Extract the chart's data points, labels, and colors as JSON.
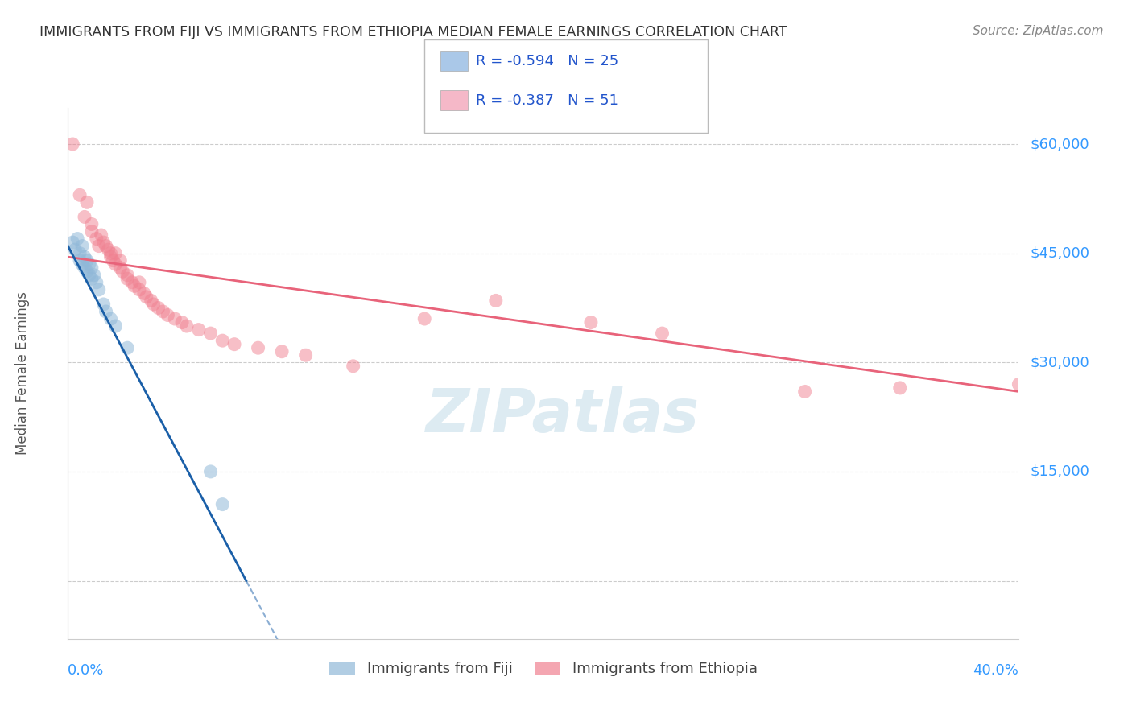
{
  "title": "IMMIGRANTS FROM FIJI VS IMMIGRANTS FROM ETHIOPIA MEDIAN FEMALE EARNINGS CORRELATION CHART",
  "source": "Source: ZipAtlas.com",
  "ylabel": "Median Female Earnings",
  "yticks": [
    0,
    15000,
    30000,
    45000,
    60000
  ],
  "ytick_labels": [
    "",
    "$15,000",
    "$30,000",
    "$45,000",
    "$60,000"
  ],
  "xmin": 0.0,
  "xmax": 0.4,
  "ymin": -8000,
  "ymax": 65000,
  "legend": [
    {
      "label": "R = -0.594   N = 25",
      "color": "#aac8e8"
    },
    {
      "label": "R = -0.387   N = 51",
      "color": "#f5b8c8"
    }
  ],
  "fiji_scatter": [
    [
      0.002,
      46500
    ],
    [
      0.003,
      45500
    ],
    [
      0.004,
      47000
    ],
    [
      0.005,
      45000
    ],
    [
      0.005,
      44000
    ],
    [
      0.006,
      46000
    ],
    [
      0.006,
      43500
    ],
    [
      0.007,
      44500
    ],
    [
      0.007,
      43000
    ],
    [
      0.008,
      44000
    ],
    [
      0.008,
      42500
    ],
    [
      0.009,
      43500
    ],
    [
      0.009,
      42000
    ],
    [
      0.01,
      43000
    ],
    [
      0.01,
      41500
    ],
    [
      0.011,
      42000
    ],
    [
      0.012,
      41000
    ],
    [
      0.013,
      40000
    ],
    [
      0.015,
      38000
    ],
    [
      0.016,
      37000
    ],
    [
      0.018,
      36000
    ],
    [
      0.02,
      35000
    ],
    [
      0.025,
      32000
    ],
    [
      0.06,
      15000
    ],
    [
      0.065,
      10500
    ]
  ],
  "ethiopia_scatter": [
    [
      0.002,
      60000
    ],
    [
      0.005,
      53000
    ],
    [
      0.007,
      50000
    ],
    [
      0.008,
      52000
    ],
    [
      0.01,
      49000
    ],
    [
      0.01,
      48000
    ],
    [
      0.012,
      47000
    ],
    [
      0.013,
      46000
    ],
    [
      0.014,
      47500
    ],
    [
      0.015,
      46500
    ],
    [
      0.016,
      46000
    ],
    [
      0.017,
      45500
    ],
    [
      0.018,
      45000
    ],
    [
      0.018,
      44500
    ],
    [
      0.019,
      44000
    ],
    [
      0.02,
      45000
    ],
    [
      0.02,
      43500
    ],
    [
      0.022,
      43000
    ],
    [
      0.022,
      44000
    ],
    [
      0.023,
      42500
    ],
    [
      0.025,
      42000
    ],
    [
      0.025,
      41500
    ],
    [
      0.027,
      41000
    ],
    [
      0.028,
      40500
    ],
    [
      0.03,
      40000
    ],
    [
      0.03,
      41000
    ],
    [
      0.032,
      39500
    ],
    [
      0.033,
      39000
    ],
    [
      0.035,
      38500
    ],
    [
      0.036,
      38000
    ],
    [
      0.038,
      37500
    ],
    [
      0.04,
      37000
    ],
    [
      0.042,
      36500
    ],
    [
      0.045,
      36000
    ],
    [
      0.048,
      35500
    ],
    [
      0.05,
      35000
    ],
    [
      0.055,
      34500
    ],
    [
      0.06,
      34000
    ],
    [
      0.065,
      33000
    ],
    [
      0.07,
      32500
    ],
    [
      0.08,
      32000
    ],
    [
      0.09,
      31500
    ],
    [
      0.1,
      31000
    ],
    [
      0.12,
      29500
    ],
    [
      0.15,
      36000
    ],
    [
      0.18,
      38500
    ],
    [
      0.22,
      35500
    ],
    [
      0.25,
      34000
    ],
    [
      0.31,
      26000
    ],
    [
      0.35,
      26500
    ],
    [
      0.4,
      27000
    ]
  ],
  "fiji_line_x0": 0.0,
  "fiji_line_y0": 46000,
  "fiji_line_x1": 0.075,
  "fiji_line_y1": 0,
  "ethiopia_line_x0": 0.0,
  "ethiopia_line_y0": 44500,
  "ethiopia_line_x1": 0.4,
  "ethiopia_line_y1": 26000,
  "fiji_line_color": "#1a5fa8",
  "ethiopia_line_color": "#e8637a",
  "fiji_dot_color": "#90b8d8",
  "ethiopia_dot_color": "#f08090",
  "background_color": "#ffffff",
  "grid_color": "#cccccc",
  "title_color": "#333333",
  "axis_label_color": "#555555",
  "ytick_color": "#3399ff",
  "xtick_color": "#3399ff"
}
